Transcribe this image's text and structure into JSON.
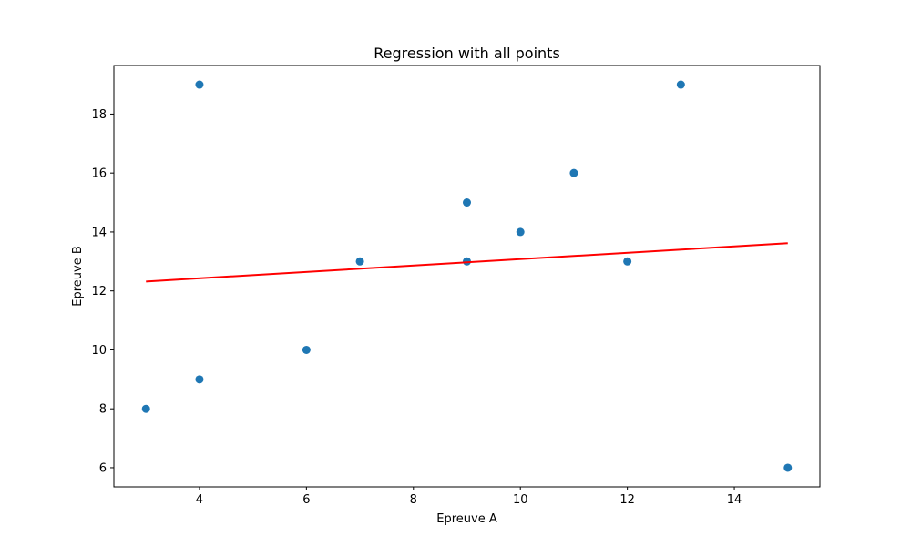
{
  "chart_data": {
    "type": "scatter",
    "title": "Regression with all points",
    "xlabel": "Epreuve A",
    "ylabel": "Epreuve B",
    "xlim": [
      2.4,
      15.6
    ],
    "ylim": [
      5.35,
      19.65
    ],
    "xticks": [
      4,
      6,
      8,
      10,
      12,
      14
    ],
    "yticks": [
      6,
      8,
      10,
      12,
      14,
      16,
      18
    ],
    "grid": false,
    "series": [
      {
        "kind": "scatter",
        "color": "#1f77b4",
        "points": [
          {
            "x": 3,
            "y": 8
          },
          {
            "x": 4,
            "y": 9
          },
          {
            "x": 4,
            "y": 19
          },
          {
            "x": 6,
            "y": 10
          },
          {
            "x": 7,
            "y": 13
          },
          {
            "x": 9,
            "y": 13
          },
          {
            "x": 9,
            "y": 15
          },
          {
            "x": 10,
            "y": 14
          },
          {
            "x": 11,
            "y": 16
          },
          {
            "x": 12,
            "y": 13
          },
          {
            "x": 13,
            "y": 19
          },
          {
            "x": 15,
            "y": 6
          }
        ]
      },
      {
        "kind": "line",
        "color": "#ff0000",
        "points": [
          {
            "x": 3,
            "y": 12.32
          },
          {
            "x": 15,
            "y": 13.62
          }
        ]
      }
    ]
  }
}
